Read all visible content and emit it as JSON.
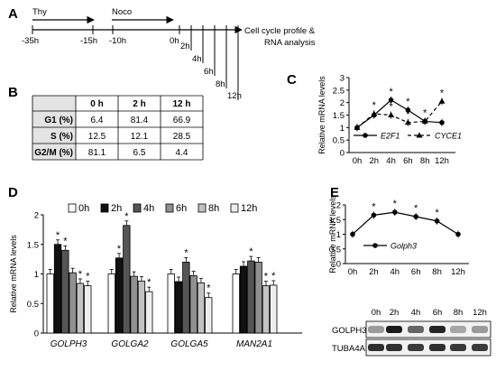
{
  "panels": {
    "A": "A",
    "B": "B",
    "C": "C",
    "D": "D",
    "E": "E"
  },
  "timeline": {
    "thy": "Thy",
    "noco": "Noco",
    "start_labels": [
      "-35h",
      "-15h",
      "-10h"
    ],
    "release_labels": [
      "0h",
      "2h",
      "4h",
      "6h",
      "8h",
      "12h"
    ],
    "outcome_line1": "Cell cycle profile &",
    "outcome_line2": "RNA analysis"
  },
  "table": {
    "headers": [
      "",
      "0 h",
      "2 h",
      "12 h"
    ],
    "rows": [
      {
        "label": "G1 (%)",
        "values": [
          "6.4",
          "81.4",
          "66.9"
        ]
      },
      {
        "label": "S (%)",
        "values": [
          "12.5",
          "12.1",
          "28.5"
        ]
      },
      {
        "label": "G2/M (%)",
        "values": [
          "81.1",
          "6.5",
          "4.4"
        ]
      }
    ]
  },
  "chart_data": [
    {
      "type": "line",
      "panel": "C",
      "ylabel": "Relative mRNA levels",
      "categories": [
        "0h",
        "2h",
        "4h",
        "6h",
        "8h",
        "12h"
      ],
      "yticks": [
        "0",
        "0.5",
        "1",
        "1.5",
        "2",
        "2.5",
        "3"
      ],
      "ylim": [
        0,
        3
      ],
      "series": [
        {
          "name": "E2F1",
          "values": [
            1.0,
            1.5,
            2.1,
            1.7,
            1.25,
            1.2
          ],
          "style": "solid-circle",
          "stars": [
            false,
            false,
            true,
            true,
            false,
            false
          ]
        },
        {
          "name": "CYCE1",
          "values": [
            1.0,
            1.55,
            1.5,
            1.2,
            1.25,
            2.05
          ],
          "style": "dashed-triangle",
          "stars": [
            false,
            true,
            true,
            true,
            true,
            true
          ]
        }
      ],
      "star": "*",
      "legend": "bottom"
    },
    {
      "type": "bar",
      "panel": "D",
      "ylabel": "Relative mRNA levels",
      "categories": [
        "GOLPH3",
        "GOLGA2",
        "GOLGA5",
        "MAN2A1"
      ],
      "yticks": [
        "0",
        "0.5",
        "1",
        "1.5",
        "2"
      ],
      "ylim": [
        0,
        2
      ],
      "series": [
        {
          "name": "0h",
          "color": "#ffffff",
          "values": [
            1.0,
            1.0,
            1.0,
            1.0
          ],
          "stars": [
            false,
            false,
            false,
            false
          ]
        },
        {
          "name": "2h",
          "color": "#111111",
          "values": [
            1.5,
            1.27,
            0.87,
            1.13
          ],
          "stars": [
            true,
            true,
            false,
            false
          ]
        },
        {
          "name": "4h",
          "color": "#555555",
          "values": [
            1.4,
            1.82,
            1.2,
            1.22
          ],
          "stars": [
            true,
            true,
            true,
            true
          ]
        },
        {
          "name": "6h",
          "color": "#909090",
          "values": [
            1.02,
            0.96,
            0.97,
            1.2
          ],
          "stars": [
            false,
            false,
            false,
            false
          ]
        },
        {
          "name": "8h",
          "color": "#c2c2c2",
          "values": [
            0.84,
            0.88,
            0.85,
            0.8
          ],
          "stars": [
            true,
            false,
            false,
            true
          ]
        },
        {
          "name": "12h",
          "color": "#eeeeee",
          "values": [
            0.8,
            0.7,
            0.6,
            0.81
          ],
          "stars": [
            true,
            true,
            true,
            true
          ]
        }
      ],
      "star": "*",
      "legend": "top"
    },
    {
      "type": "line",
      "panel": "E",
      "ylabel": "Relative mRNA levels",
      "categories": [
        "0h",
        "2h",
        "4h",
        "6h",
        "8h",
        "12h"
      ],
      "yticks": [
        "0",
        "0.5",
        "1",
        "1.5",
        "2"
      ],
      "ylim": [
        0,
        2
      ],
      "series": [
        {
          "name": "Golph3",
          "values": [
            1.0,
            1.65,
            1.75,
            1.6,
            1.45,
            1.0
          ],
          "style": "solid-circle",
          "stars": [
            false,
            true,
            true,
            true,
            true,
            false
          ]
        }
      ],
      "star": "*",
      "legend": "bottom"
    }
  ],
  "blot": {
    "time_labels": [
      "0h",
      "2h",
      "4h",
      "6h",
      "8h",
      "12h"
    ],
    "rows": [
      {
        "label": "GOLPH3",
        "intensities": [
          0.35,
          0.95,
          0.6,
          0.9,
          0.3,
          0.35
        ]
      },
      {
        "label": "TUBA4A",
        "intensities": [
          0.85,
          0.85,
          0.8,
          0.85,
          0.8,
          0.8
        ]
      }
    ]
  }
}
